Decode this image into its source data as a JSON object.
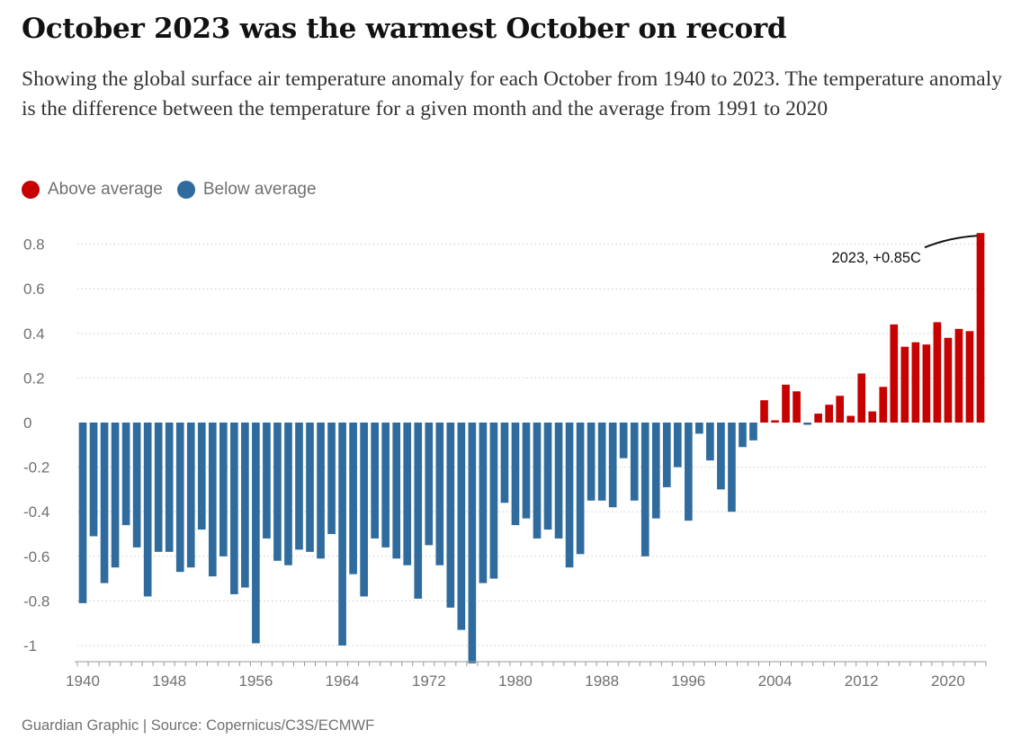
{
  "title": "October 2023 was the warmest October on record",
  "subtitle": "Showing the global surface air temperature anomaly for each October from 1940 to 2023. The temperature anomaly is the difference between the temperature for a given month and the average from 1991 to 2020",
  "legend": [
    {
      "label": "Above average",
      "color": "#c70000"
    },
    {
      "label": "Below average",
      "color": "#2f6c9d"
    }
  ],
  "footer": "Guardian Graphic | Source: Copernicus/C3S/ECMWF",
  "chart_data": {
    "type": "bar",
    "title": "October 2023 was the warmest October on record",
    "xlabel": "",
    "ylabel": "",
    "ylim": [
      -1.08,
      0.85
    ],
    "yticks": [
      0.8,
      0.6,
      0.4,
      0.2,
      0,
      -0.2,
      -0.4,
      -0.6,
      -0.8,
      -1
    ],
    "ytick_labels": [
      "0.8",
      "0.6",
      "0.4",
      "0.2",
      "0",
      "-0.2",
      "-0.4",
      "-0.6",
      "-0.8",
      "-1"
    ],
    "xticks": [
      "1940",
      "1948",
      "1956",
      "1964",
      "1972",
      "1980",
      "1988",
      "1996",
      "2004",
      "2012",
      "2020"
    ],
    "grid": "horizontal dotted",
    "legend_position": "top-left",
    "positive_color": "#c70000",
    "negative_color": "#2f6c9d",
    "categories": [
      1940,
      1941,
      1942,
      1943,
      1944,
      1945,
      1946,
      1947,
      1948,
      1949,
      1950,
      1951,
      1952,
      1953,
      1954,
      1955,
      1956,
      1957,
      1958,
      1959,
      1960,
      1961,
      1962,
      1963,
      1964,
      1965,
      1966,
      1967,
      1968,
      1969,
      1970,
      1971,
      1972,
      1973,
      1974,
      1975,
      1976,
      1977,
      1978,
      1979,
      1980,
      1981,
      1982,
      1983,
      1984,
      1985,
      1986,
      1987,
      1988,
      1989,
      1990,
      1991,
      1992,
      1993,
      1994,
      1995,
      1996,
      1997,
      1998,
      1999,
      2000,
      2001,
      2002,
      2003,
      2004,
      2005,
      2006,
      2007,
      2008,
      2009,
      2010,
      2011,
      2012,
      2013,
      2014,
      2015,
      2016,
      2017,
      2018,
      2019,
      2020,
      2021,
      2022,
      2023
    ],
    "values": [
      -0.81,
      -0.51,
      -0.72,
      -0.65,
      -0.46,
      -0.56,
      -0.78,
      -0.58,
      -0.58,
      -0.67,
      -0.65,
      -0.48,
      -0.69,
      -0.6,
      -0.77,
      -0.74,
      -0.99,
      -0.52,
      -0.62,
      -0.64,
      -0.57,
      -0.58,
      -0.61,
      -0.5,
      -1.0,
      -0.68,
      -0.78,
      -0.52,
      -0.56,
      -0.61,
      -0.64,
      -0.79,
      -0.55,
      -0.64,
      -0.83,
      -0.93,
      -1.08,
      -0.72,
      -0.7,
      -0.36,
      -0.46,
      -0.43,
      -0.52,
      -0.48,
      -0.52,
      -0.65,
      -0.59,
      -0.35,
      -0.35,
      -0.38,
      -0.16,
      -0.35,
      -0.6,
      -0.43,
      -0.29,
      -0.2,
      -0.44,
      -0.05,
      -0.17,
      -0.3,
      -0.4,
      -0.11,
      -0.08,
      0.1,
      0.01,
      0.17,
      0.14,
      -0.01,
      0.04,
      0.08,
      0.12,
      0.03,
      0.22,
      0.05,
      0.16,
      0.44,
      0.34,
      0.36,
      0.35,
      0.45,
      0.38,
      0.42,
      0.41,
      0.85
    ],
    "annotation": {
      "label": "2023, +0.85C",
      "year": 2023,
      "value": 0.85
    }
  }
}
